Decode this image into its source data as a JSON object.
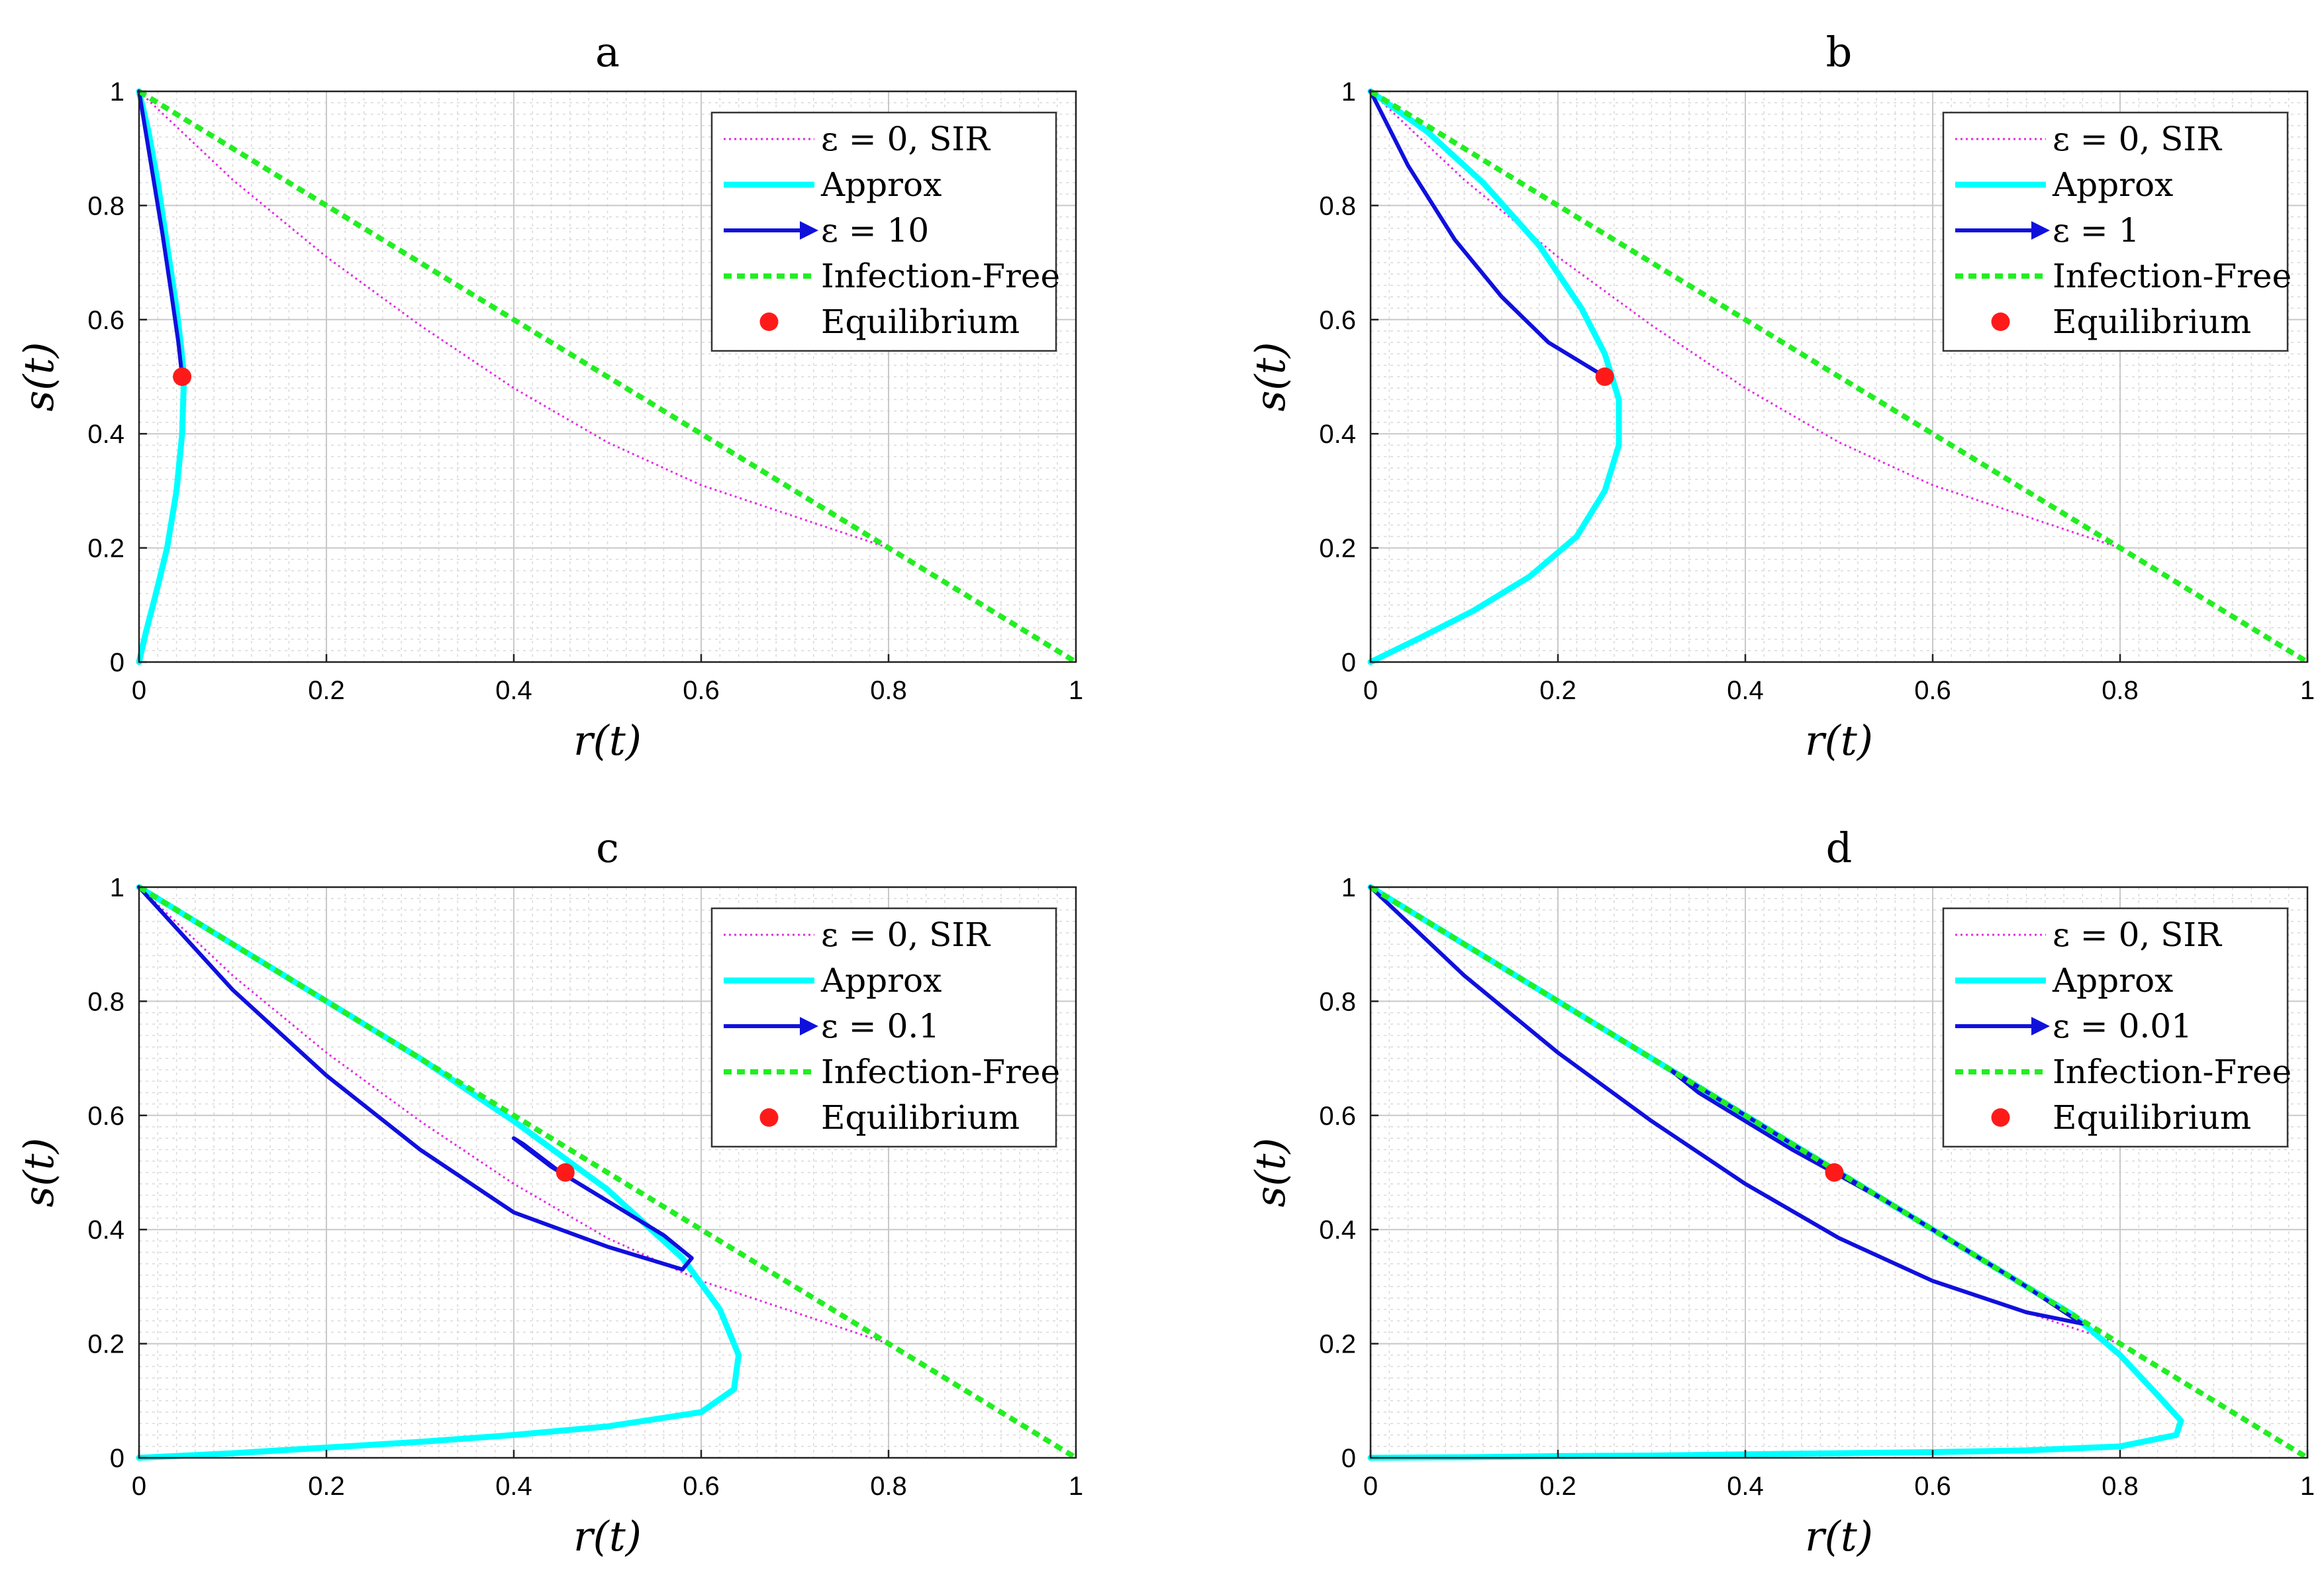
{
  "chart_data": [
    {
      "type": "line",
      "title": "a",
      "xlabel": "r(t)",
      "ylabel": "s(t)",
      "xlim": [
        0,
        1
      ],
      "ylim": [
        0,
        1
      ],
      "xticks": [
        "0",
        "0.2",
        "0.4",
        "0.6",
        "0.8",
        "1"
      ],
      "yticks": [
        "0",
        "0.2",
        "0.4",
        "0.6",
        "0.8",
        "1"
      ],
      "grid": true,
      "legend_position": "top-right",
      "legend": [
        "ε = 0, SIR",
        "Approx",
        "ε = 10",
        "Infection-Free",
        "Equilibrium"
      ],
      "series": [
        {
          "name": "ε = 0, SIR",
          "style": "magenta-dotted",
          "x": [
            0,
            0.1,
            0.2,
            0.3,
            0.4,
            0.5,
            0.6,
            0.7,
            0.8
          ],
          "y": [
            1,
            0.845,
            0.71,
            0.59,
            0.48,
            0.385,
            0.31,
            0.255,
            0.2
          ]
        },
        {
          "name": "Approx",
          "style": "cyan-solid",
          "x": [
            0,
            0.01,
            0.02,
            0.03,
            0.04,
            0.045,
            0.048,
            0.046,
            0.04,
            0.03,
            0.018,
            0.007,
            0
          ],
          "y": [
            1,
            0.93,
            0.84,
            0.73,
            0.62,
            0.55,
            0.5,
            0.4,
            0.3,
            0.2,
            0.12,
            0.05,
            0
          ]
        },
        {
          "name": "ε = 10",
          "style": "blue-solid",
          "x": [
            0,
            0.012,
            0.025,
            0.035,
            0.042,
            0.046
          ],
          "y": [
            1,
            0.88,
            0.75,
            0.64,
            0.56,
            0.5
          ]
        },
        {
          "name": "Infection-Free",
          "style": "green-dashed",
          "x": [
            0,
            1
          ],
          "y": [
            1,
            0
          ]
        },
        {
          "name": "Equilibrium",
          "style": "red-marker",
          "x": [
            0.046
          ],
          "y": [
            0.5
          ]
        }
      ]
    },
    {
      "type": "line",
      "title": "b",
      "xlabel": "r(t)",
      "ylabel": "s(t)",
      "xlim": [
        0,
        1
      ],
      "ylim": [
        0,
        1
      ],
      "xticks": [
        "0",
        "0.2",
        "0.4",
        "0.6",
        "0.8",
        "1"
      ],
      "yticks": [
        "0",
        "0.2",
        "0.4",
        "0.6",
        "0.8",
        "1"
      ],
      "grid": true,
      "legend_position": "top-right",
      "legend": [
        "ε = 0, SIR",
        "Approx",
        "ε = 1",
        "Infection-Free",
        "Equilibrium"
      ],
      "series": [
        {
          "name": "ε = 0, SIR",
          "style": "magenta-dotted",
          "x": [
            0,
            0.1,
            0.2,
            0.3,
            0.4,
            0.5,
            0.6,
            0.7,
            0.8
          ],
          "y": [
            1,
            0.845,
            0.71,
            0.59,
            0.48,
            0.385,
            0.31,
            0.255,
            0.2
          ]
        },
        {
          "name": "Approx",
          "style": "cyan-solid",
          "x": [
            0,
            0.06,
            0.12,
            0.18,
            0.225,
            0.25,
            0.265,
            0.265,
            0.25,
            0.22,
            0.17,
            0.11,
            0.05,
            0
          ],
          "y": [
            1,
            0.93,
            0.84,
            0.73,
            0.62,
            0.54,
            0.46,
            0.38,
            0.3,
            0.22,
            0.15,
            0.09,
            0.04,
            0
          ]
        },
        {
          "name": "ε = 1",
          "style": "blue-solid",
          "x": [
            0,
            0.04,
            0.09,
            0.14,
            0.19,
            0.25
          ],
          "y": [
            1,
            0.87,
            0.74,
            0.64,
            0.56,
            0.5
          ]
        },
        {
          "name": "Infection-Free",
          "style": "green-dashed",
          "x": [
            0,
            1
          ],
          "y": [
            1,
            0
          ]
        },
        {
          "name": "Equilibrium",
          "style": "red-marker",
          "x": [
            0.25
          ],
          "y": [
            0.5
          ]
        }
      ]
    },
    {
      "type": "line",
      "title": "c",
      "xlabel": "r(t)",
      "ylabel": "s(t)",
      "xlim": [
        0,
        1
      ],
      "ylim": [
        0,
        1
      ],
      "xticks": [
        "0",
        "0.2",
        "0.4",
        "0.6",
        "0.8",
        "1"
      ],
      "yticks": [
        "0",
        "0.2",
        "0.4",
        "0.6",
        "0.8",
        "1"
      ],
      "grid": true,
      "legend_position": "top-right",
      "legend": [
        "ε = 0, SIR",
        "Approx",
        "ε = 0.1",
        "Infection-Free",
        "Equilibrium"
      ],
      "series": [
        {
          "name": "ε = 0, SIR",
          "style": "magenta-dotted",
          "x": [
            0,
            0.1,
            0.2,
            0.3,
            0.4,
            0.5,
            0.6,
            0.7,
            0.8
          ],
          "y": [
            1,
            0.845,
            0.71,
            0.59,
            0.48,
            0.385,
            0.31,
            0.255,
            0.2
          ]
        },
        {
          "name": "Approx",
          "style": "cyan-solid",
          "x": [
            0,
            0.1,
            0.2,
            0.3,
            0.4,
            0.5,
            0.58,
            0.62,
            0.64,
            0.635,
            0.6,
            0.5,
            0.4,
            0.3,
            0.2,
            0.1,
            0
          ],
          "y": [
            1,
            0.9,
            0.8,
            0.7,
            0.59,
            0.47,
            0.35,
            0.26,
            0.18,
            0.12,
            0.08,
            0.055,
            0.04,
            0.028,
            0.018,
            0.008,
            0
          ]
        },
        {
          "name": "ε = 0.1",
          "style": "blue-solid",
          "x": [
            0,
            0.1,
            0.2,
            0.3,
            0.4,
            0.5,
            0.58,
            0.59,
            0.56,
            0.5,
            0.44,
            0.4,
            0.41,
            0.45
          ],
          "y": [
            1,
            0.82,
            0.67,
            0.54,
            0.43,
            0.37,
            0.33,
            0.35,
            0.39,
            0.45,
            0.51,
            0.56,
            0.55,
            0.5
          ]
        },
        {
          "name": "Infection-Free",
          "style": "green-dashed",
          "x": [
            0,
            1
          ],
          "y": [
            1,
            0
          ]
        },
        {
          "name": "Equilibrium",
          "style": "red-marker",
          "x": [
            0.455
          ],
          "y": [
            0.5
          ]
        }
      ]
    },
    {
      "type": "line",
      "title": "d",
      "xlabel": "r(t)",
      "ylabel": "s(t)",
      "xlim": [
        0,
        1
      ],
      "ylim": [
        0,
        1
      ],
      "xticks": [
        "0",
        "0.2",
        "0.4",
        "0.6",
        "0.8",
        "1"
      ],
      "yticks": [
        "0",
        "0.2",
        "0.4",
        "0.6",
        "0.8",
        "1"
      ],
      "grid": true,
      "legend_position": "top-right",
      "legend": [
        "ε = 0, SIR",
        "Approx",
        "ε = 0.01",
        "Infection-Free",
        "Equilibrium"
      ],
      "series": [
        {
          "name": "ε = 0, SIR",
          "style": "magenta-dotted",
          "x": [
            0,
            0.1,
            0.2,
            0.3,
            0.4,
            0.5,
            0.6,
            0.7,
            0.8
          ],
          "y": [
            1,
            0.845,
            0.71,
            0.59,
            0.48,
            0.385,
            0.31,
            0.255,
            0.2
          ]
        },
        {
          "name": "Approx",
          "style": "cyan-solid",
          "x": [
            0,
            0.1,
            0.2,
            0.3,
            0.4,
            0.5,
            0.6,
            0.7,
            0.75,
            0.8,
            0.84,
            0.865,
            0.86,
            0.8,
            0.7,
            0.6,
            0.5,
            0.4,
            0.3,
            0.2,
            0.1,
            0
          ],
          "y": [
            1,
            0.9,
            0.8,
            0.7,
            0.6,
            0.5,
            0.4,
            0.3,
            0.25,
            0.18,
            0.11,
            0.065,
            0.04,
            0.02,
            0.013,
            0.01,
            0.008,
            0.006,
            0.004,
            0.003,
            0.001,
            0
          ]
        },
        {
          "name": "ε = 0.01",
          "style": "blue-solid",
          "x": [
            0,
            0.1,
            0.2,
            0.3,
            0.4,
            0.5,
            0.6,
            0.7,
            0.76,
            0.75,
            0.7,
            0.6,
            0.5,
            0.4,
            0.32,
            0.35,
            0.45,
            0.55,
            0.61,
            0.6,
            0.55,
            0.5
          ],
          "y": [
            1,
            0.845,
            0.71,
            0.59,
            0.48,
            0.385,
            0.31,
            0.255,
            0.235,
            0.245,
            0.3,
            0.4,
            0.5,
            0.6,
            0.68,
            0.64,
            0.54,
            0.45,
            0.39,
            0.4,
            0.45,
            0.5
          ]
        },
        {
          "name": "Infection-Free",
          "style": "green-dashed",
          "x": [
            0,
            1
          ],
          "y": [
            1,
            0
          ]
        },
        {
          "name": "Equilibrium",
          "style": "red-marker",
          "x": [
            0.495
          ],
          "y": [
            0.5
          ]
        }
      ]
    }
  ],
  "colors": {
    "sir": "#e629e6",
    "approx": "#00ffff",
    "epsilon": "#1010dd",
    "infection_free": "#22ee22",
    "equilibrium": "#ff1a1a"
  }
}
